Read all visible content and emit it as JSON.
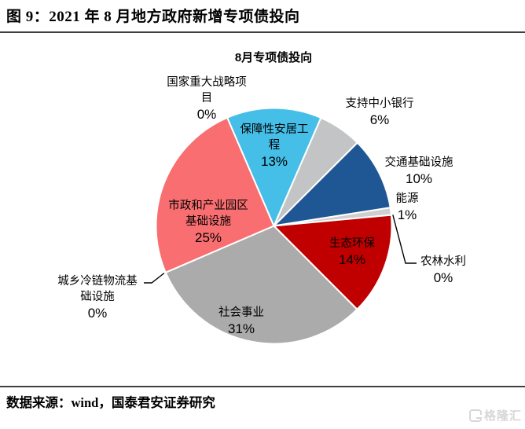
{
  "header": {
    "title": "图 9：2021 年 8 月地方政府新增专项债投向"
  },
  "footer": {
    "source": "数据来源：wind，国泰君安证券研究",
    "logo_text": "格隆汇"
  },
  "chart_data": {
    "type": "pie",
    "title": "8月专项债投向",
    "start_angle_deg": 23.5,
    "legend_position": "none",
    "slice_border_color": "#ffffff",
    "slices": [
      {
        "label": "支持中小银行",
        "pct": "6%",
        "value": 6,
        "color": "#c3c4c6"
      },
      {
        "label": "交通基础设施",
        "pct": "10%",
        "value": 10,
        "color": "#1f5795"
      },
      {
        "label": "能源",
        "pct": "1%",
        "value": 1,
        "color": "#cfcfcf"
      },
      {
        "label": "农林水利",
        "pct": "0%",
        "value": 0,
        "color": "#ffffff"
      },
      {
        "label": "生态环保",
        "pct": "14%",
        "value": 14,
        "color": "#c00000"
      },
      {
        "label": "社会事业",
        "pct": "31%",
        "value": 31,
        "color": "#ababab"
      },
      {
        "label": "城乡冷链物流基础设施",
        "pct": "0%",
        "value": 0,
        "color": "#ffffff"
      },
      {
        "label": "市政和产业园区基础设施",
        "pct": "25%",
        "value": 25,
        "color": "#f96e70"
      },
      {
        "label": "保障性安居工程",
        "pct": "13%",
        "value": 13,
        "color": "#45bee8"
      },
      {
        "label": "国家重大战略项目",
        "pct": "0%",
        "value": 0,
        "color": "#ffffff"
      }
    ]
  }
}
